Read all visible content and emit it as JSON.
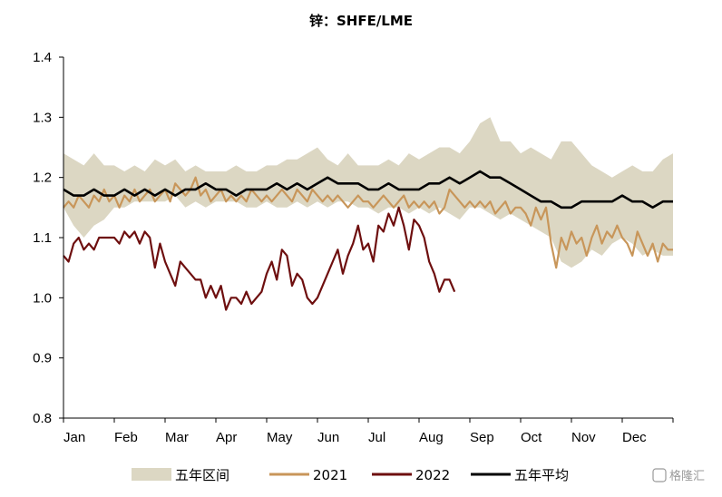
{
  "chart_data": {
    "type": "line",
    "title": "锌：SHFE/LME",
    "xlabel": "",
    "ylabel": "",
    "x_categories": [
      "Jan",
      "Feb",
      "Mar",
      "Apr",
      "May",
      "Jun",
      "Jul",
      "Aug",
      "Sep",
      "Oct",
      "Nov",
      "Dec"
    ],
    "ylim": [
      0.8,
      1.4
    ],
    "yticks": [
      "0.8",
      "0.9",
      "1.0",
      "1.1",
      "1.2",
      "1.3",
      "1.4"
    ],
    "x_unit": "month index (0 = start of Jan, 12 = end of Dec)",
    "grid": false,
    "legend_position": "bottom",
    "series": [
      {
        "name": "五年区间",
        "kind": "band",
        "color": "#dcd7c3",
        "x": [
          0.0,
          0.2,
          0.4,
          0.6,
          0.8,
          1.0,
          1.2,
          1.4,
          1.6,
          1.8,
          2.0,
          2.2,
          2.4,
          2.6,
          2.8,
          3.0,
          3.2,
          3.4,
          3.6,
          3.8,
          4.0,
          4.2,
          4.4,
          4.6,
          4.8,
          5.0,
          5.2,
          5.4,
          5.6,
          5.8,
          6.0,
          6.2,
          6.4,
          6.6,
          6.8,
          7.0,
          7.2,
          7.4,
          7.6,
          7.8,
          8.0,
          8.2,
          8.4,
          8.6,
          8.8,
          9.0,
          9.2,
          9.4,
          9.6,
          9.8,
          10.0,
          10.2,
          10.4,
          10.6,
          10.8,
          11.0,
          11.2,
          11.4,
          11.6,
          11.8,
          12.0
        ],
        "lower": [
          1.15,
          1.12,
          1.1,
          1.12,
          1.13,
          1.15,
          1.15,
          1.16,
          1.16,
          1.16,
          1.16,
          1.17,
          1.15,
          1.16,
          1.15,
          1.16,
          1.16,
          1.16,
          1.15,
          1.15,
          1.16,
          1.15,
          1.15,
          1.16,
          1.15,
          1.16,
          1.15,
          1.16,
          1.16,
          1.15,
          1.15,
          1.14,
          1.15,
          1.15,
          1.14,
          1.15,
          1.14,
          1.15,
          1.14,
          1.13,
          1.15,
          1.15,
          1.14,
          1.13,
          1.14,
          1.13,
          1.12,
          1.11,
          1.1,
          1.06,
          1.05,
          1.06,
          1.08,
          1.07,
          1.09,
          1.1,
          1.09,
          1.07,
          1.08,
          1.07,
          1.07
        ],
        "upper": [
          1.24,
          1.23,
          1.22,
          1.24,
          1.22,
          1.22,
          1.21,
          1.22,
          1.21,
          1.23,
          1.22,
          1.23,
          1.21,
          1.22,
          1.21,
          1.21,
          1.21,
          1.22,
          1.21,
          1.21,
          1.22,
          1.22,
          1.23,
          1.23,
          1.24,
          1.25,
          1.23,
          1.22,
          1.24,
          1.22,
          1.22,
          1.22,
          1.23,
          1.22,
          1.24,
          1.23,
          1.24,
          1.25,
          1.25,
          1.24,
          1.26,
          1.29,
          1.3,
          1.26,
          1.26,
          1.24,
          1.25,
          1.24,
          1.23,
          1.26,
          1.26,
          1.24,
          1.22,
          1.21,
          1.2,
          1.21,
          1.22,
          1.21,
          1.21,
          1.23,
          1.24
        ]
      },
      {
        "name": "2021",
        "kind": "line",
        "color": "#c8965a",
        "x": [
          0.0,
          0.1,
          0.2,
          0.3,
          0.4,
          0.5,
          0.6,
          0.7,
          0.8,
          0.9,
          1.0,
          1.1,
          1.2,
          1.3,
          1.4,
          1.5,
          1.6,
          1.7,
          1.8,
          1.9,
          2.0,
          2.1,
          2.2,
          2.3,
          2.4,
          2.5,
          2.6,
          2.7,
          2.8,
          2.9,
          3.0,
          3.1,
          3.2,
          3.3,
          3.4,
          3.5,
          3.6,
          3.7,
          3.8,
          3.9,
          4.0,
          4.1,
          4.2,
          4.3,
          4.4,
          4.5,
          4.6,
          4.7,
          4.8,
          4.9,
          5.0,
          5.1,
          5.2,
          5.3,
          5.4,
          5.5,
          5.6,
          5.7,
          5.8,
          5.9,
          6.0,
          6.1,
          6.2,
          6.3,
          6.4,
          6.5,
          6.6,
          6.7,
          6.8,
          6.9,
          7.0,
          7.1,
          7.2,
          7.3,
          7.4,
          7.5,
          7.6,
          7.7,
          7.8,
          7.9,
          8.0,
          8.1,
          8.2,
          8.3,
          8.4,
          8.5,
          8.6,
          8.7,
          8.8,
          8.9,
          9.0,
          9.1,
          9.2,
          9.3,
          9.4,
          9.5,
          9.6,
          9.7,
          9.8,
          9.9,
          10.0,
          10.1,
          10.2,
          10.3,
          10.4,
          10.5,
          10.6,
          10.7,
          10.8,
          10.9,
          11.0,
          11.1,
          11.2,
          11.3,
          11.4,
          11.5,
          11.6,
          11.7,
          11.8,
          11.9,
          12.0
        ],
        "y": [
          1.15,
          1.16,
          1.15,
          1.17,
          1.16,
          1.15,
          1.17,
          1.16,
          1.18,
          1.16,
          1.17,
          1.15,
          1.17,
          1.16,
          1.18,
          1.16,
          1.17,
          1.18,
          1.16,
          1.17,
          1.18,
          1.16,
          1.19,
          1.18,
          1.17,
          1.18,
          1.2,
          1.17,
          1.18,
          1.16,
          1.17,
          1.18,
          1.16,
          1.17,
          1.16,
          1.17,
          1.16,
          1.18,
          1.17,
          1.16,
          1.17,
          1.16,
          1.17,
          1.18,
          1.17,
          1.16,
          1.18,
          1.17,
          1.16,
          1.18,
          1.17,
          1.16,
          1.17,
          1.16,
          1.17,
          1.16,
          1.15,
          1.16,
          1.17,
          1.16,
          1.16,
          1.15,
          1.16,
          1.17,
          1.16,
          1.15,
          1.16,
          1.17,
          1.15,
          1.16,
          1.15,
          1.16,
          1.15,
          1.16,
          1.14,
          1.15,
          1.18,
          1.17,
          1.16,
          1.15,
          1.16,
          1.15,
          1.16,
          1.15,
          1.16,
          1.14,
          1.15,
          1.16,
          1.14,
          1.15,
          1.15,
          1.14,
          1.12,
          1.15,
          1.13,
          1.15,
          1.09,
          1.05,
          1.1,
          1.08,
          1.11,
          1.09,
          1.1,
          1.07,
          1.1,
          1.12,
          1.09,
          1.11,
          1.1,
          1.12,
          1.1,
          1.09,
          1.07,
          1.11,
          1.09,
          1.07,
          1.09,
          1.06,
          1.09,
          1.08,
          1.08
        ]
      },
      {
        "name": "2022",
        "kind": "line",
        "color": "#6e0f0f",
        "x": [
          0.0,
          0.1,
          0.2,
          0.3,
          0.4,
          0.5,
          0.6,
          0.7,
          0.8,
          0.9,
          1.0,
          1.1,
          1.2,
          1.3,
          1.4,
          1.5,
          1.6,
          1.7,
          1.8,
          1.9,
          2.0,
          2.1,
          2.2,
          2.3,
          2.4,
          2.5,
          2.6,
          2.7,
          2.8,
          2.9,
          3.0,
          3.1,
          3.2,
          3.3,
          3.4,
          3.5,
          3.6,
          3.7,
          3.8,
          3.9,
          4.0,
          4.1,
          4.2,
          4.3,
          4.4,
          4.5,
          4.6,
          4.7,
          4.8,
          4.9,
          5.0,
          5.1,
          5.2,
          5.3,
          5.4,
          5.5,
          5.6,
          5.7,
          5.8,
          5.9,
          6.0,
          6.1,
          6.2,
          6.3,
          6.4,
          6.5,
          6.6,
          6.7,
          6.8,
          6.9,
          7.0,
          7.1,
          7.2,
          7.3,
          7.4,
          7.5,
          7.6,
          7.7
        ],
        "y": [
          1.07,
          1.06,
          1.09,
          1.1,
          1.08,
          1.09,
          1.08,
          1.1,
          1.1,
          1.1,
          1.1,
          1.09,
          1.11,
          1.1,
          1.11,
          1.09,
          1.11,
          1.1,
          1.05,
          1.09,
          1.06,
          1.04,
          1.02,
          1.06,
          1.05,
          1.04,
          1.03,
          1.03,
          1.0,
          1.02,
          1.0,
          1.02,
          0.98,
          1.0,
          1.0,
          0.99,
          1.01,
          0.99,
          1.0,
          1.01,
          1.04,
          1.06,
          1.03,
          1.08,
          1.07,
          1.02,
          1.04,
          1.03,
          1.0,
          0.99,
          1.0,
          1.02,
          1.04,
          1.06,
          1.08,
          1.04,
          1.07,
          1.09,
          1.12,
          1.08,
          1.09,
          1.06,
          1.12,
          1.11,
          1.14,
          1.12,
          1.15,
          1.12,
          1.08,
          1.13,
          1.12,
          1.1,
          1.06,
          1.04,
          1.01,
          1.03,
          1.03,
          1.01
        ]
      },
      {
        "name": "五年平均",
        "kind": "line",
        "color": "#000000",
        "x": [
          0.0,
          0.2,
          0.4,
          0.6,
          0.8,
          1.0,
          1.2,
          1.4,
          1.6,
          1.8,
          2.0,
          2.2,
          2.4,
          2.6,
          2.8,
          3.0,
          3.2,
          3.4,
          3.6,
          3.8,
          4.0,
          4.2,
          4.4,
          4.6,
          4.8,
          5.0,
          5.2,
          5.4,
          5.6,
          5.8,
          6.0,
          6.2,
          6.4,
          6.6,
          6.8,
          7.0,
          7.2,
          7.4,
          7.6,
          7.8,
          8.0,
          8.2,
          8.4,
          8.6,
          8.8,
          9.0,
          9.2,
          9.4,
          9.6,
          9.8,
          10.0,
          10.2,
          10.4,
          10.6,
          10.8,
          11.0,
          11.2,
          11.4,
          11.6,
          11.8,
          12.0
        ],
        "y": [
          1.18,
          1.17,
          1.17,
          1.18,
          1.17,
          1.17,
          1.18,
          1.17,
          1.18,
          1.17,
          1.18,
          1.17,
          1.18,
          1.18,
          1.19,
          1.18,
          1.18,
          1.17,
          1.18,
          1.18,
          1.18,
          1.19,
          1.18,
          1.19,
          1.18,
          1.19,
          1.2,
          1.19,
          1.19,
          1.19,
          1.18,
          1.18,
          1.19,
          1.18,
          1.18,
          1.18,
          1.19,
          1.19,
          1.2,
          1.19,
          1.2,
          1.21,
          1.2,
          1.2,
          1.19,
          1.18,
          1.17,
          1.16,
          1.16,
          1.15,
          1.15,
          1.16,
          1.16,
          1.16,
          1.16,
          1.17,
          1.16,
          1.16,
          1.15,
          1.16,
          1.16
        ]
      }
    ]
  },
  "watermark": "格隆汇"
}
